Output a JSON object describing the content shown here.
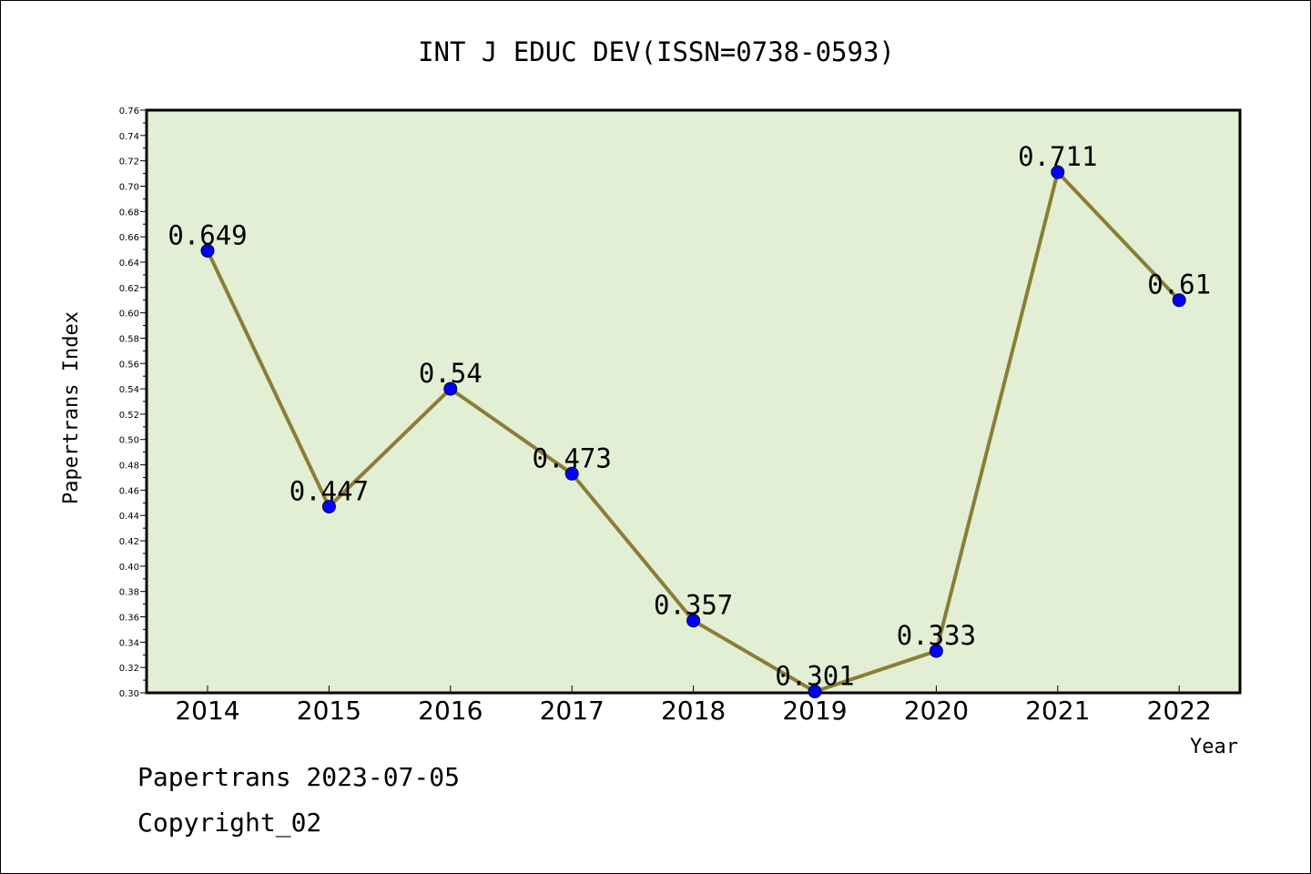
{
  "chart_data": {
    "type": "line",
    "title": "INT J EDUC DEV(ISSN=0738-0593)",
    "xlabel": "Year",
    "ylabel": "Papertrans Index",
    "categories": [
      "2014",
      "2015",
      "2016",
      "2017",
      "2018",
      "2019",
      "2020",
      "2021",
      "2022"
    ],
    "values": [
      0.649,
      0.447,
      0.54,
      0.473,
      0.357,
      0.301,
      0.333,
      0.711,
      0.61
    ],
    "data_labels": [
      "0.649",
      "0.447",
      "0.54",
      "0.473",
      "0.357",
      "0.301",
      "0.333",
      "0.711",
      "0.61"
    ],
    "ylim": [
      0.3,
      0.76
    ],
    "yticks": [
      "0.30",
      "0.32",
      "0.34",
      "0.36",
      "0.38",
      "0.40",
      "0.42",
      "0.44",
      "0.46",
      "0.48",
      "0.50",
      "0.52",
      "0.54",
      "0.56",
      "0.58",
      "0.60",
      "0.62",
      "0.64",
      "0.66",
      "0.68",
      "0.70",
      "0.72",
      "0.74",
      "0.76"
    ],
    "grid": false,
    "legend": "none",
    "colors": {
      "plot_background": "#e2efd5",
      "line": "#8b7d36",
      "marker": "#0000ff",
      "frame": "#000000"
    }
  },
  "footer": {
    "date_line": "Papertrans 2023-07-05",
    "copyright": "Copyright_02"
  }
}
